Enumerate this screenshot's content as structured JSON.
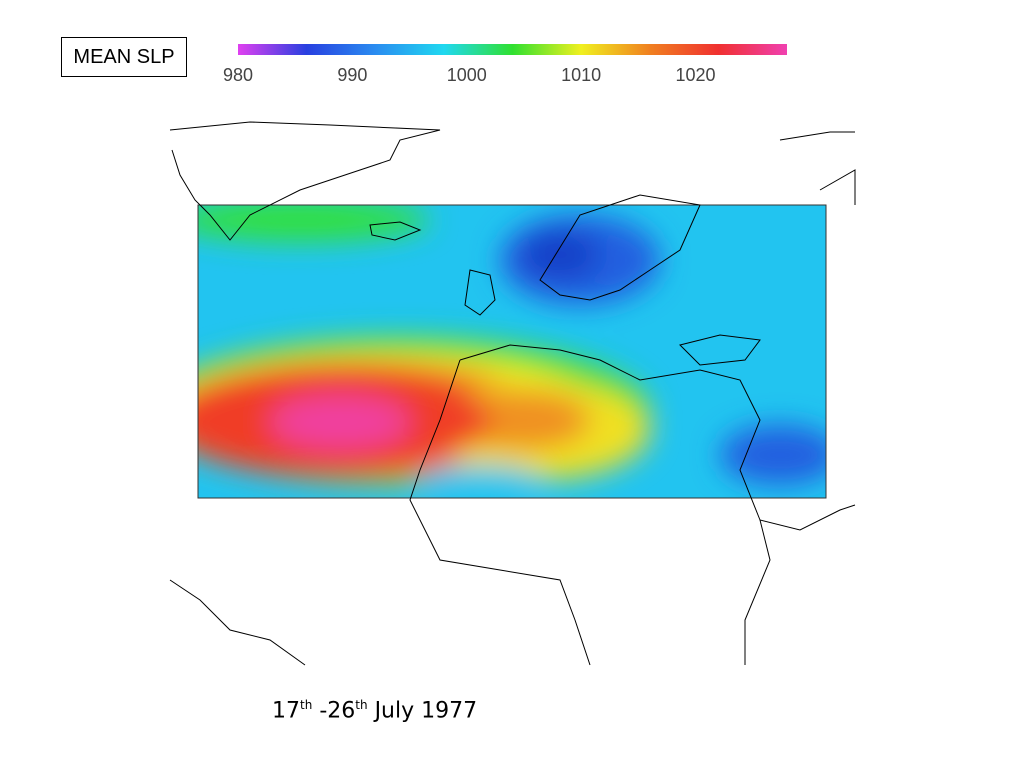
{
  "title": "MEAN SLP",
  "colorbar": {
    "range": [
      980,
      1028
    ],
    "ticks": [
      980,
      990,
      1000,
      1010,
      1020
    ],
    "colors": [
      "#e040f0",
      "#2840e0",
      "#2a8cf0",
      "#20d8f0",
      "#30e030",
      "#f0f020",
      "#f08020",
      "#f03030",
      "#f040b0"
    ]
  },
  "caption": {
    "start": "17",
    "start_suffix": "th",
    "end": "-26",
    "end_suffix": "th",
    "rest": "July 1977"
  }
}
